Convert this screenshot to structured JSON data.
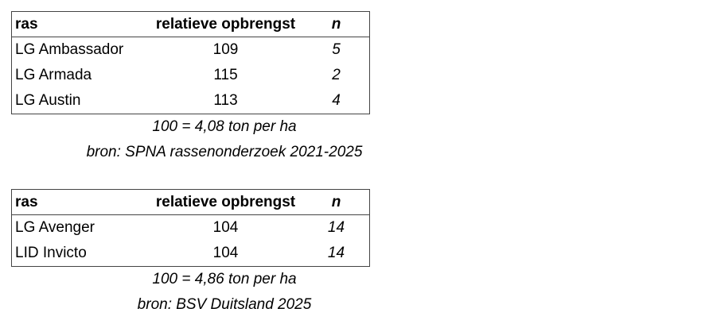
{
  "tables": [
    {
      "header": [
        "ras",
        "relatieve opbrengst",
        "n"
      ],
      "rows": [
        [
          "LG Ambassador",
          109,
          5
        ],
        [
          "LG Armada",
          115,
          2
        ],
        [
          "LG Austin",
          113,
          4
        ]
      ],
      "notes": [
        "100 = 4,08 ton per ha",
        "bron: SPNA rassenonderzoek 2021-2025"
      ]
    },
    {
      "header": [
        "ras",
        "relatieve opbrengst",
        "n"
      ],
      "rows": [
        [
          "LG Avenger",
          104,
          14
        ],
        [
          "LID Invicto",
          104,
          14
        ]
      ],
      "notes": [
        "100 = 4,86 ton per ha",
        "bron: BSV Duitsland 2025"
      ]
    }
  ]
}
